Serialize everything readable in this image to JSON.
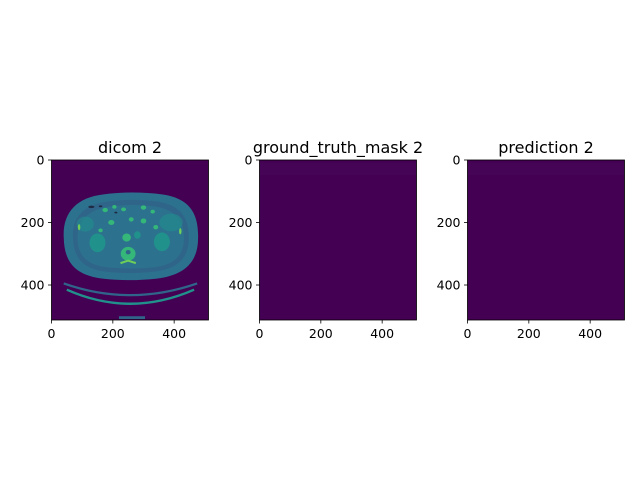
{
  "colors": {
    "background": "#440154",
    "body": "#2c728e",
    "body_dark": "#30658a",
    "tissue": "#21918c",
    "bright": "#35b779",
    "bone": "#6ece58",
    "dark": "#1f2a44",
    "axis": "#000000"
  },
  "chart_data": [
    {
      "type": "image",
      "title": "dicom 2",
      "xlabel": "",
      "ylabel": "",
      "xlim": [
        0,
        512
      ],
      "ylim": [
        512,
        0
      ],
      "xticks": [
        0,
        200,
        400
      ],
      "yticks": [
        0,
        200,
        400
      ],
      "image_size": [
        512,
        512
      ],
      "content": "axial CT slice",
      "colormap": "viridis"
    },
    {
      "type": "image",
      "title": "ground_truth_mask 2",
      "xlabel": "",
      "ylabel": "",
      "xlim": [
        0,
        512
      ],
      "ylim": [
        512,
        0
      ],
      "xticks": [
        0,
        200,
        400
      ],
      "yticks": [
        0,
        200,
        400
      ],
      "image_size": [
        512,
        512
      ],
      "content": "empty mask",
      "colormap": "viridis"
    },
    {
      "type": "image",
      "title": "prediction 2",
      "xlabel": "",
      "ylabel": "",
      "xlim": [
        0,
        512
      ],
      "ylim": [
        512,
        0
      ],
      "xticks": [
        0,
        200,
        400
      ],
      "yticks": [
        0,
        200,
        400
      ],
      "image_size": [
        512,
        512
      ],
      "content": "empty prediction",
      "colormap": "viridis"
    }
  ]
}
